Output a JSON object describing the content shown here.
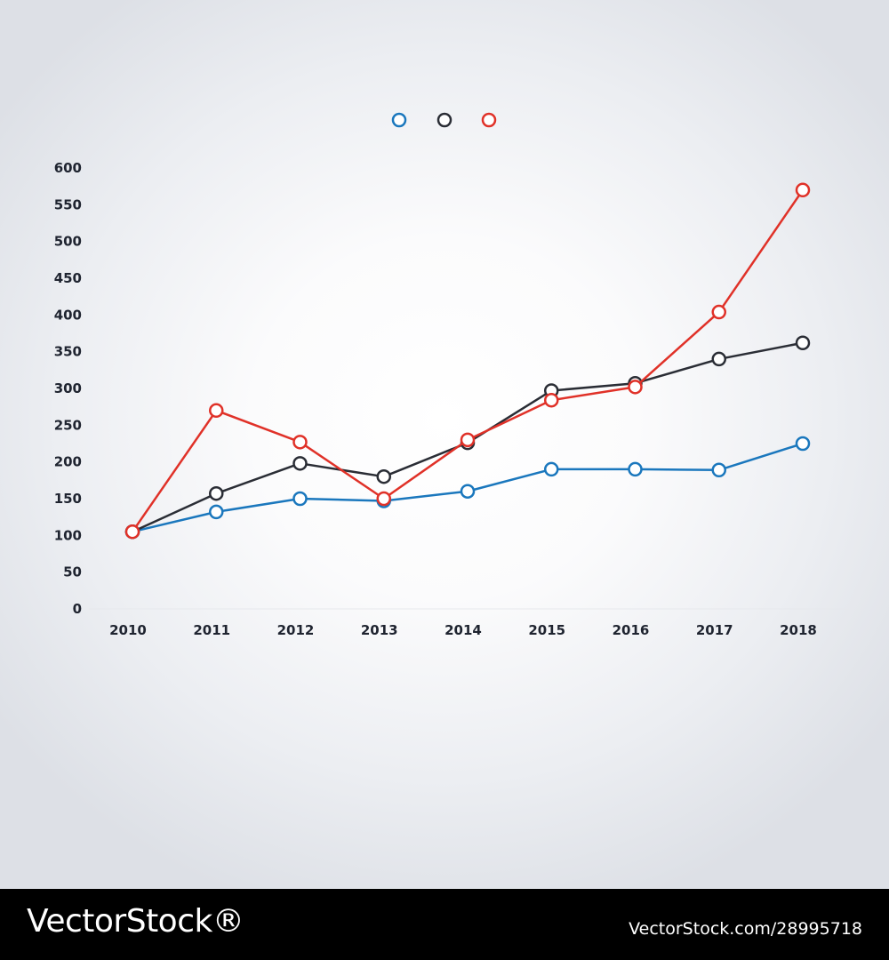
{
  "chart_data": {
    "type": "line",
    "title": "",
    "xlabel": "",
    "ylabel": "",
    "categories": [
      "2010",
      "2011",
      "2012",
      "2013",
      "2014",
      "2015",
      "2016",
      "2017",
      "2018"
    ],
    "ylim": [
      0,
      600
    ],
    "yticks": [
      0,
      50,
      100,
      150,
      200,
      250,
      300,
      350,
      400,
      450,
      500,
      550,
      600
    ],
    "grid": false,
    "legend": "top-center",
    "series": [
      {
        "color": "#1a77bd",
        "values": [
          105,
          132,
          150,
          147,
          160,
          190,
          190,
          189,
          225
        ]
      },
      {
        "color": "#2a2d35",
        "values": [
          105,
          157,
          198,
          180,
          226,
          297,
          307,
          340,
          362
        ]
      },
      {
        "color": "#e03128",
        "values": [
          105,
          270,
          227,
          150,
          230,
          284,
          302,
          404,
          570
        ]
      }
    ]
  },
  "footer": {
    "brand": "VectorStock®",
    "image_id": "VectorStock.com/28995718"
  }
}
